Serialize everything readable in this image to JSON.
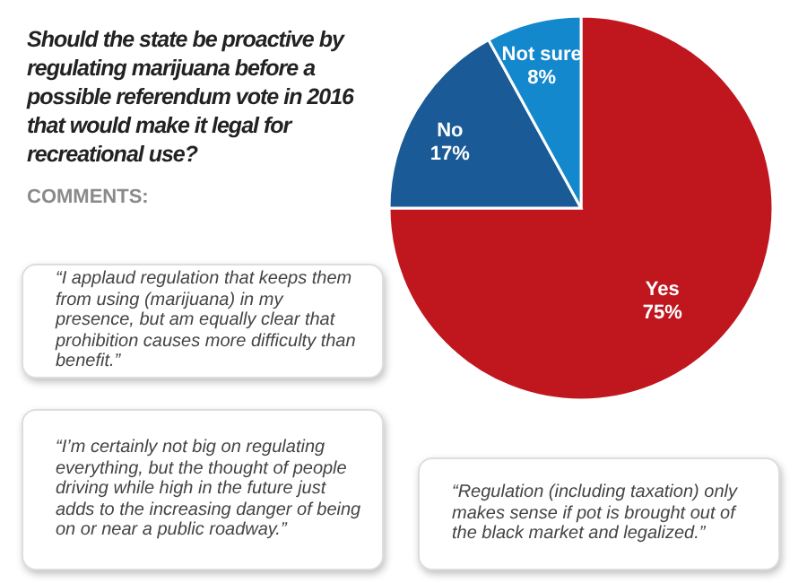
{
  "chart_data": {
    "type": "pie",
    "title": "Should the state be proactive by regulating marijuana before a possible referendum vote in 2016 that would make it legal for recreational use?",
    "categories": [
      "Yes",
      "No",
      "Not sure"
    ],
    "values": [
      75,
      17,
      8
    ],
    "value_labels": [
      "75%",
      "17%",
      "8%"
    ],
    "colors": [
      "#c0171f",
      "#1a5a96",
      "#1488cc"
    ],
    "annotations": [
      "COMMENTS:",
      "“I applaud regulation that keeps them from using (marijuana) in my presence, but am equally clear that prohibition causes more difficulty than benefit.”",
      "“I’m certainly not big on regulating everything, but the thought of people driving while high in the future just adds to the increasing danger of being on or near a public roadway.”",
      "“Regulation (including taxation) only makes sense if pot is brought out of the black market and legalized.”"
    ]
  }
}
